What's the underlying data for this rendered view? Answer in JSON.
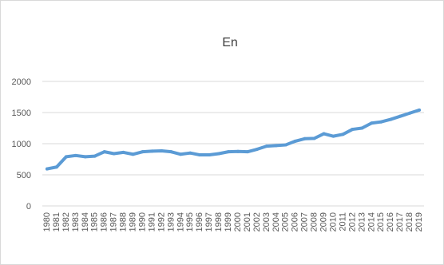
{
  "chart_data": {
    "type": "line",
    "title": "En",
    "xlabel": "",
    "ylabel": "",
    "ylim": [
      0,
      2000
    ],
    "yticks": [
      0,
      500,
      1000,
      1500,
      2000
    ],
    "grid": true,
    "legend": "none",
    "line_color": "#5b9bd5",
    "categories": [
      "1980",
      "1981",
      "1982",
      "1983",
      "1984",
      "1985",
      "1986",
      "1987",
      "1988",
      "1989",
      "1990",
      "1991",
      "1992",
      "1993",
      "1994",
      "1995",
      "1996",
      "1997",
      "1998",
      "1999",
      "2000",
      "2001",
      "2002",
      "2003",
      "2004",
      "2005",
      "2006",
      "2007",
      "2008",
      "2009",
      "2010",
      "2011",
      "2012",
      "2013",
      "2014",
      "2015",
      "2016",
      "2017",
      "2018",
      "2019"
    ],
    "series": [
      {
        "values": [
          595,
          625,
          790,
          810,
          790,
          800,
          870,
          840,
          860,
          830,
          870,
          880,
          885,
          870,
          830,
          850,
          820,
          820,
          840,
          870,
          875,
          870,
          910,
          960,
          970,
          980,
          1040,
          1080,
          1085,
          1160,
          1120,
          1150,
          1230,
          1250,
          1330,
          1350,
          1390,
          1440,
          1490,
          1540
        ]
      }
    ]
  }
}
